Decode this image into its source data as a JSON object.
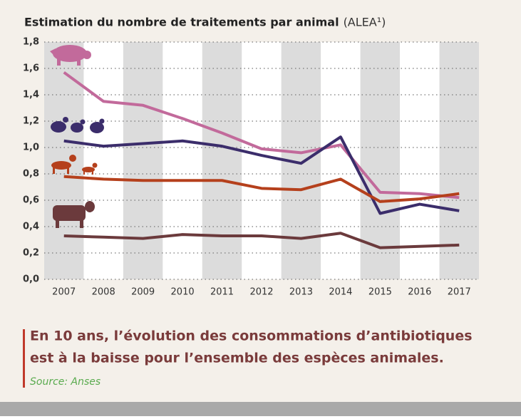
{
  "chart_data": {
    "type": "line",
    "title": "Estimation du nombre de traitements par animal",
    "subtitle": "(ALEA¹)",
    "categories": [
      "2007",
      "2008",
      "2009",
      "2010",
      "2011",
      "2012",
      "2013",
      "2014",
      "2015",
      "2016",
      "2017"
    ],
    "series": [
      {
        "color": "#c26a9b",
        "values": [
          1.57,
          1.35,
          1.32,
          1.22,
          1.11,
          0.99,
          0.96,
          1.02,
          0.66,
          0.65,
          0.62
        ]
      },
      {
        "color": "#3b2d6b",
        "values": [
          1.05,
          1.01,
          1.03,
          1.05,
          1.01,
          0.94,
          0.88,
          1.08,
          0.5,
          0.57,
          0.52
        ]
      },
      {
        "color": "#b5401c",
        "values": [
          0.78,
          0.76,
          0.75,
          0.75,
          0.75,
          0.69,
          0.68,
          0.76,
          0.59,
          0.61,
          0.65
        ]
      },
      {
        "color": "#6b3a3c",
        "values": [
          0.33,
          0.32,
          0.31,
          0.34,
          0.33,
          0.33,
          0.31,
          0.35,
          0.24,
          0.25,
          0.26
        ]
      }
    ],
    "ylim": [
      0,
      1.8
    ],
    "yticks": [
      {
        "value": 0,
        "label": "0,0"
      },
      {
        "value": 0.2,
        "label": "0,2"
      },
      {
        "value": 0.4,
        "label": "0,4"
      },
      {
        "value": 0.6,
        "label": "0,6"
      },
      {
        "value": 0.8,
        "label": "0,8"
      },
      {
        "value": 1.0,
        "label": "1,0"
      },
      {
        "value": 1.2,
        "label": "1,2"
      },
      {
        "value": 1.4,
        "label": "1,4"
      },
      {
        "value": 1.6,
        "label": "1,6"
      },
      {
        "value": 1.8,
        "label": "1,8"
      }
    ],
    "grid": true,
    "annotations": [
      "En 10 ans, l’évolution des consommations d’antibiotiques",
      "est à la baisse pour l’ensemble des espèces animales."
    ],
    "source": "Source: Anses"
  }
}
